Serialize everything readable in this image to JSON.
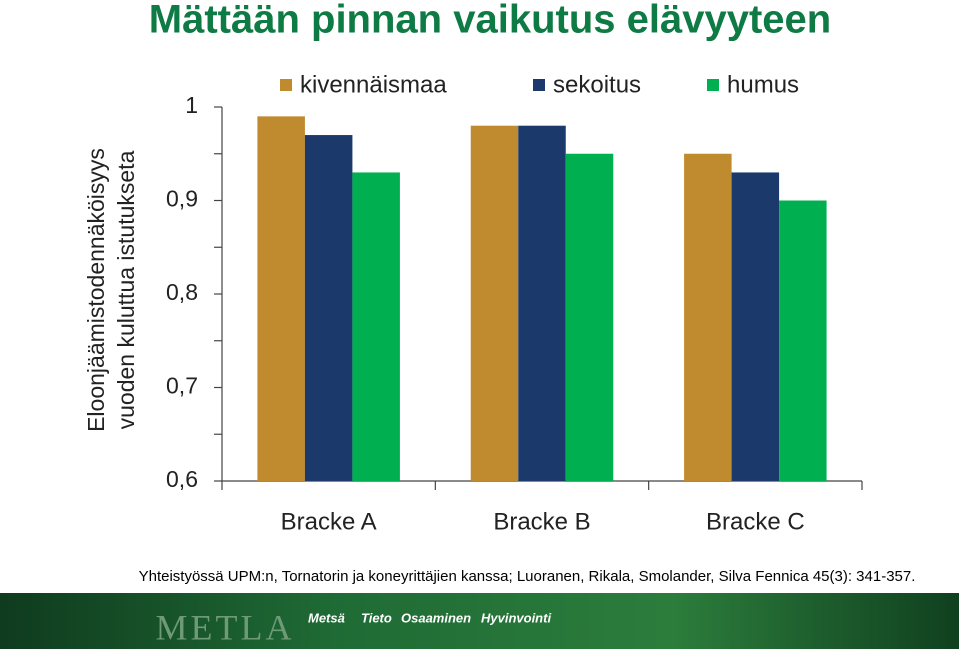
{
  "chart_data": {
    "type": "bar",
    "title": "Mättään pinnan vaikutus elävyyteen",
    "ylabel": [
      "Eloonjäämistodennäköisyys",
      "vuoden kuluttua istutukseta"
    ],
    "categories": [
      "Bracke A",
      "Bracke B",
      "Bracke C"
    ],
    "series": [
      {
        "name": "kivennäismaa",
        "color": "#c08a2e",
        "values": [
          0.99,
          0.98,
          0.95
        ]
      },
      {
        "name": "sekoitus",
        "color": "#1b3a6b",
        "values": [
          0.97,
          0.98,
          0.93
        ]
      },
      {
        "name": "humus",
        "color": "#00b050",
        "values": [
          0.93,
          0.95,
          0.9
        ]
      }
    ],
    "ylim": [
      0.6,
      1
    ],
    "yticks": [
      {
        "value": 0.6,
        "label": "0,6"
      },
      {
        "value": 0.7,
        "label": "0,7"
      },
      {
        "value": 0.8,
        "label": "0,8"
      },
      {
        "value": 0.9,
        "label": "0,9"
      },
      1
    ],
    "minor_yticks": [
      0.65,
      0.75,
      0.85,
      0.95
    ],
    "legend": "top",
    "note": "Yhteistyössä UPM:n, Tornatorin ja koneyrittäjien kanssa; Luoranen, Rikala, Smolander, Silva Fennica 45(3): 341-357."
  },
  "footer": {
    "logo": "METLA",
    "slogans": [
      "Metsä",
      "Tieto",
      "Osaaminen",
      "Hyvinvointi"
    ]
  }
}
